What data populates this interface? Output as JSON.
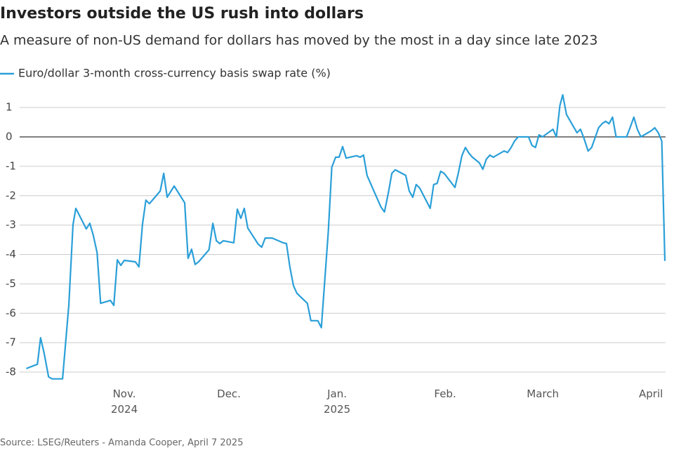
{
  "chart_data": {
    "type": "line",
    "title": "Investors outside the US rush into dollars",
    "subtitle": "A measure of non-US demand for dollars has moved by the most in a day since late 2023",
    "source": "Source: LSEG/Reuters - Amanda Cooper, April 7 2025",
    "x": [
      -28.1,
      -24.9,
      -24.0,
      -23.0,
      -21.7,
      -20.7,
      -17.7,
      -15.9,
      -14.7,
      -13.9,
      -10.9,
      -9.9,
      -8.9,
      -7.8,
      -6.8,
      -4.0,
      -3.0,
      -2.0,
      -1.0,
      0,
      3.2,
      4.2,
      5.2,
      6.2,
      7.2,
      10.3,
      11.3,
      12.3,
      14.3,
      17.3,
      18.3,
      19.3,
      20.3,
      21.3,
      24.3,
      25.4,
      26.4,
      27.4,
      28.4,
      31.4,
      32.4,
      33.4,
      34.4,
      35.4,
      38.4,
      39.4,
      40.4,
      42.4,
      45.5,
      46.5,
      47.5,
      48.5,
      49.5,
      52.5,
      53.5,
      55.5,
      56.5,
      58.5,
      59.5,
      60.6,
      61.6,
      62.6,
      63.6,
      66.6,
      67.6,
      68.6,
      69.6,
      72.6,
      73.6,
      74.6,
      75.7,
      76.7,
      77.7,
      80.7,
      81.7,
      82.7,
      83.7,
      84.7,
      87.7,
      88.7,
      89.7,
      90.7,
      91.7,
      94.8,
      95.8,
      96.8,
      97.8,
      98.8,
      99.8,
      101.8,
      102.8,
      103.8,
      104.8,
      105.8,
      108.9,
      109.9,
      110.9,
      111.9,
      112.9,
      115.9,
      116.9,
      117.9,
      118.9,
      119.9,
      122.9,
      123.9,
      124.9,
      125.7,
      126.8,
      129.8,
      130.8,
      131.8,
      133.0,
      134.0,
      136.0,
      137.0,
      138.0,
      139.0,
      140.0,
      141.0,
      144.0,
      145.0,
      146.1,
      147.1,
      148.1,
      151.1,
      152.1,
      153.1,
      154.1,
      155.0
    ],
    "series": [
      {
        "name": "Euro/dollar 3-month cross-currency basis swap rate (%)",
        "color": "#2a9fd8",
        "values": [
          -7.88,
          -7.73,
          -6.83,
          -7.35,
          -8.16,
          -8.23,
          -8.23,
          -5.73,
          -2.98,
          -2.43,
          -3.13,
          -2.94,
          -3.34,
          -3.94,
          -5.66,
          -5.56,
          -5.73,
          -4.18,
          -4.37,
          -4.2,
          -4.25,
          -4.42,
          -2.98,
          -2.15,
          -2.27,
          -1.84,
          -1.24,
          -2.05,
          -1.67,
          -2.24,
          -4.13,
          -3.82,
          -4.34,
          -4.25,
          -3.84,
          -2.94,
          -3.53,
          -3.63,
          -3.53,
          -3.6,
          -2.46,
          -2.77,
          -2.43,
          -3.1,
          -3.65,
          -3.75,
          -3.44,
          -3.44,
          -3.6,
          -3.63,
          -4.44,
          -5.06,
          -5.32,
          -5.66,
          -6.25,
          -6.25,
          -6.49,
          -3.22,
          -1.03,
          -0.69,
          -0.69,
          -0.33,
          -0.72,
          -0.64,
          -0.69,
          -0.62,
          -1.31,
          -2.12,
          -2.39,
          -2.55,
          -1.91,
          -1.24,
          -1.12,
          -1.31,
          -1.84,
          -2.05,
          -1.62,
          -1.74,
          -2.43,
          -1.62,
          -1.58,
          -1.17,
          -1.24,
          -1.72,
          -1.22,
          -0.64,
          -0.36,
          -0.55,
          -0.69,
          -0.88,
          -1.1,
          -0.76,
          -0.62,
          -0.69,
          -0.48,
          -0.53,
          -0.36,
          -0.14,
          0,
          0,
          -0.29,
          -0.36,
          0.07,
          0,
          0.26,
          0,
          1.07,
          1.43,
          0.76,
          0.14,
          0.26,
          -0.05,
          -0.48,
          -0.36,
          0.31,
          0.45,
          0.53,
          0.45,
          0.67,
          0,
          0,
          0.31,
          0.67,
          0.26,
          0,
          0.21,
          0.31,
          0.14,
          -0.14,
          -4.22
        ]
      }
    ],
    "xlim": [
      -30,
      156
    ],
    "xticks": [
      {
        "value": 0,
        "label": "Nov.\n2024"
      },
      {
        "value": 30,
        "label": "Dec."
      },
      {
        "value": 61,
        "label": "Jan.\n2025"
      },
      {
        "value": 92,
        "label": "Feb."
      },
      {
        "value": 120,
        "label": "March"
      },
      {
        "value": 151,
        "label": "April"
      }
    ],
    "ylim": [
      -8.5,
      1.6
    ],
    "yticks": [
      1,
      0,
      -1,
      -2,
      -3,
      -4,
      -5,
      -6,
      -7,
      -8
    ],
    "grid": true
  }
}
